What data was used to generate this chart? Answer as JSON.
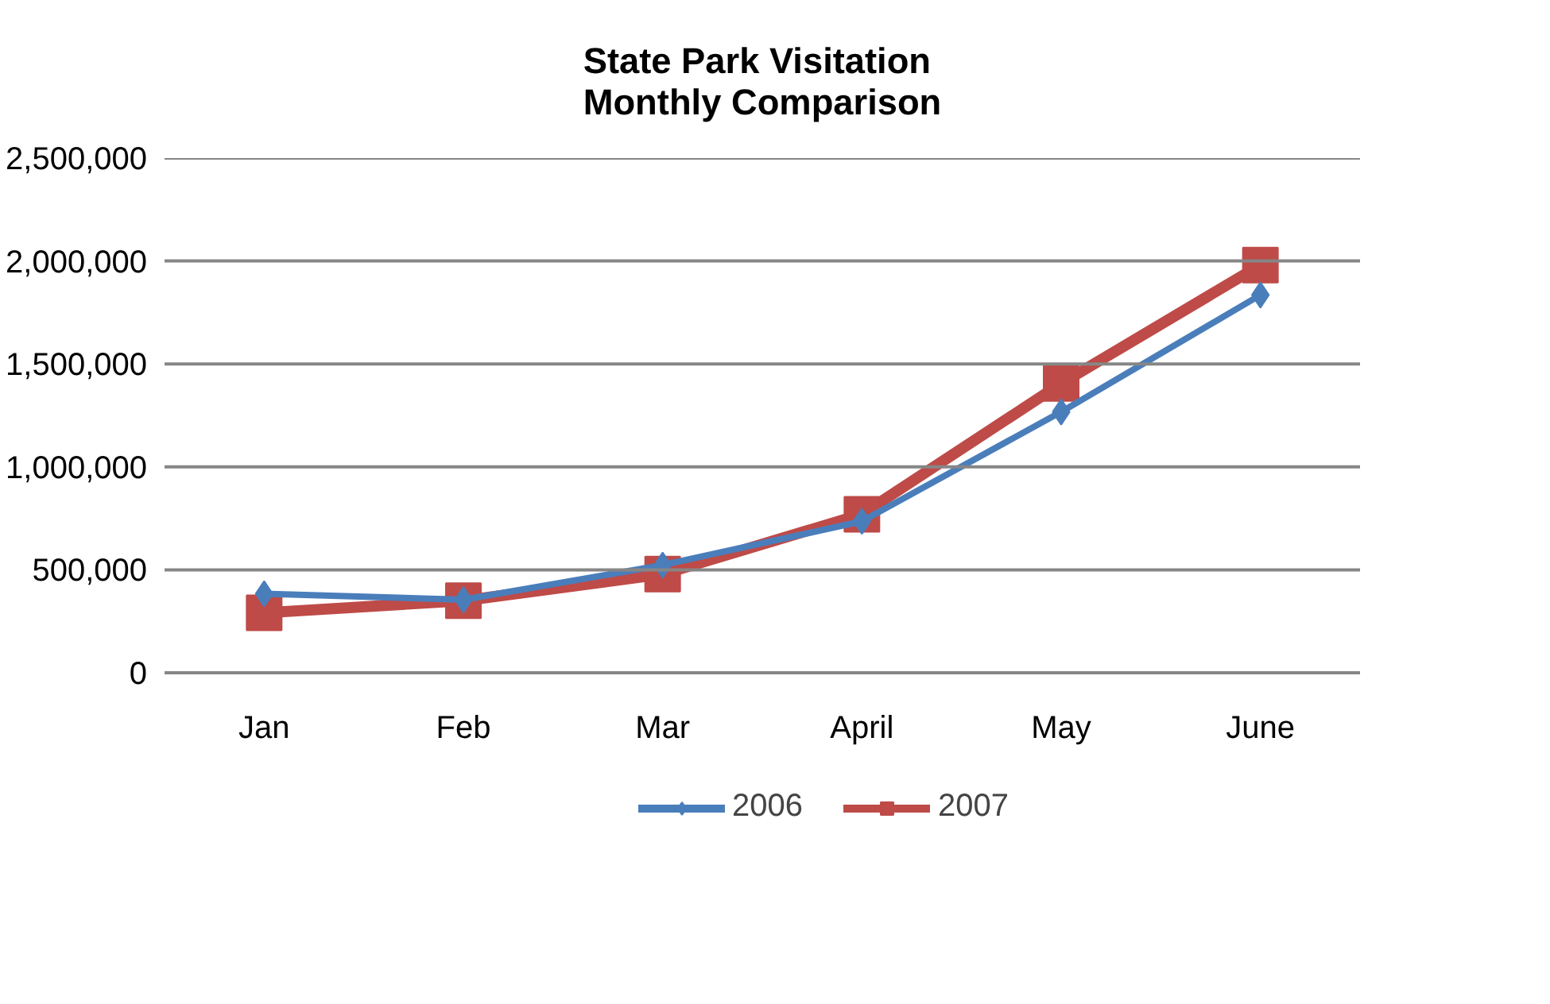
{
  "chart_data": {
    "type": "line",
    "title": "State Park Visitation\nMonthly Comparison",
    "categories": [
      "Jan",
      "Feb",
      "Mar",
      "April",
      "May",
      "June"
    ],
    "series": [
      {
        "name": "2006",
        "color": "#4a7ebb",
        "marker": "diamond",
        "values": [
          384000,
          355000,
          523000,
          736000,
          1267000,
          1835000
        ]
      },
      {
        "name": "2007",
        "color": "#be4b48",
        "marker": "square",
        "values": [
          291000,
          350000,
          479000,
          770000,
          1405000,
          1980000
        ]
      }
    ],
    "ylim": [
      0,
      2500000
    ],
    "yticks": [
      {
        "value": 0,
        "label": "0"
      },
      {
        "value": 500000,
        "label": "500,000"
      },
      {
        "value": 1000000,
        "label": "1,000,000"
      },
      {
        "value": 1500000,
        "label": "1,500,000"
      },
      {
        "value": 2000000,
        "label": "2,000,000"
      },
      {
        "value": 2500000,
        "label": "2,500,000"
      }
    ],
    "grid": "y",
    "legend": "bottom",
    "line_style": "solid"
  }
}
